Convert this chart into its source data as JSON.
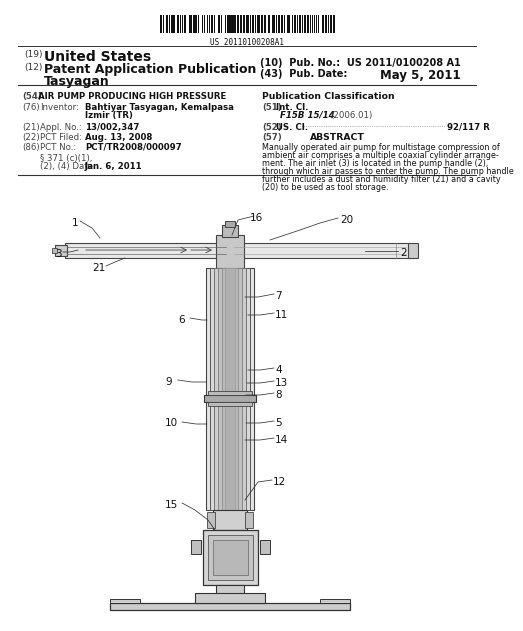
{
  "barcode_text": "US 20110100208A1",
  "patent_number": "US 2011/0100208 A1",
  "pub_date": "May 5, 2011",
  "country": "United States",
  "app_type": "Patent Application Publication",
  "name": "Tasyagan",
  "fig_title_label": "(54)",
  "fig_title": "AIR PUMP PRODUCING HIGH PRESSURE",
  "pub_class_title": "Publication Classification",
  "inventor_val1": "Bahtiyar Tasyagan, Kemalpasa",
  "inventor_val2": "Izmir (TR)",
  "appl_no": "13/002,347",
  "pct_filed": "Aug. 13, 2008",
  "pct_no": "PCT/TR2008/000097",
  "date_val": "Jan. 6, 2011",
  "int_cl_val": "F15B 15/14",
  "int_cl_date": "(2006.01)",
  "us_cl_val": "92/117 R",
  "abstract_text": "Manually operated air pump for multistage compression of\nambient air comprises a multiple coaxial cylinder arrange-\nment. The air inlet (3) is located in the pump handle (2),\nthrough which air passes to enter the pump. The pump handle\nfurther includes a dust and humidity filter (21) and a cavity\n(20) to be used as tool storage.",
  "bg_color": "#ffffff"
}
